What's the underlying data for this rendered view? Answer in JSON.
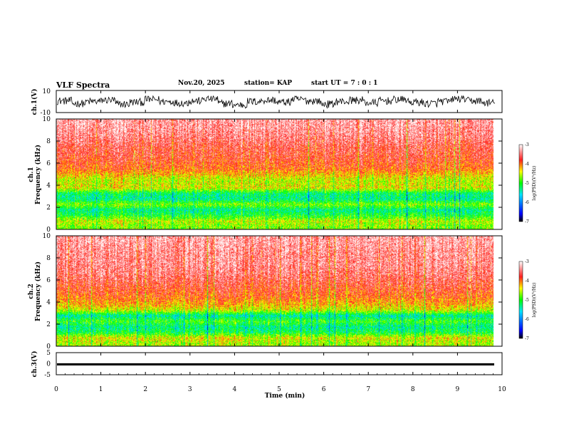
{
  "header": {
    "title": "VLF Spectra",
    "date": "Nov.20, 2025",
    "station": "station= KAP",
    "start": "start  UT  =   7 : 0  : 1"
  },
  "chart_data": [
    {
      "id": "ch1-waveform",
      "type": "line",
      "ylabel": "ch.1(V)",
      "ylim": [
        -10,
        10
      ],
      "yticks": [
        10,
        -10
      ],
      "xlim": [
        0,
        10
      ],
      "approx_range": [
        -6,
        5
      ],
      "samples": [
        1,
        -3,
        0,
        2,
        -4,
        -1,
        3,
        0,
        -2,
        1,
        4,
        -3,
        -5,
        0,
        2,
        -1,
        3,
        1,
        -4,
        0,
        2,
        -2,
        1,
        3,
        -1,
        -3,
        0,
        4,
        1,
        -2
      ]
    },
    {
      "id": "ch1-spectrogram",
      "type": "heatmap",
      "ylabel": "Frequency  (kHz)",
      "panel_label": "ch.1",
      "ylim": [
        0,
        10
      ],
      "yticks": [
        0,
        2,
        4,
        6,
        8,
        10
      ],
      "xlim": [
        0,
        10
      ],
      "colorbar": {
        "label": "log(PSD)(V²/Hz)",
        "ticks": [
          -3,
          -4,
          -5,
          -6,
          -7
        ],
        "range": [
          -7,
          -3
        ]
      },
      "frequency_profile_log_psd": [
        {
          "f": 0.25,
          "v": -4.7
        },
        {
          "f": 0.75,
          "v": -4.5
        },
        {
          "f": 1.25,
          "v": -5.0
        },
        {
          "f": 1.75,
          "v": -5.3
        },
        {
          "f": 2.25,
          "v": -4.7
        },
        {
          "f": 2.75,
          "v": -5.3
        },
        {
          "f": 3.25,
          "v": -5.2
        },
        {
          "f": 3.75,
          "v": -4.4
        },
        {
          "f": 4.5,
          "v": -4.5
        },
        {
          "f": 5.5,
          "v": -3.9
        },
        {
          "f": 6.5,
          "v": -3.7
        },
        {
          "f": 7.5,
          "v": -3.6
        },
        {
          "f": 8.5,
          "v": -3.4
        },
        {
          "f": 9.5,
          "v": -3.3
        }
      ]
    },
    {
      "id": "ch2-spectrogram",
      "type": "heatmap",
      "ylabel": "Frequency  (kHz)",
      "panel_label": "ch.2",
      "ylim": [
        0,
        10
      ],
      "yticks": [
        0,
        2,
        4,
        6,
        8,
        10
      ],
      "xlim": [
        0,
        10
      ],
      "colorbar": {
        "label": "log(PSD)(V²/Hz)",
        "ticks": [
          -3,
          -4,
          -5,
          -6,
          -7
        ],
        "range": [
          -7,
          -3
        ]
      },
      "frequency_profile_log_psd": [
        {
          "f": 0.25,
          "v": -4.6
        },
        {
          "f": 0.75,
          "v": -4.4
        },
        {
          "f": 1.25,
          "v": -5.1
        },
        {
          "f": 1.75,
          "v": -5.3
        },
        {
          "f": 2.25,
          "v": -4.9
        },
        {
          "f": 2.75,
          "v": -5.4
        },
        {
          "f": 3.25,
          "v": -4.5
        },
        {
          "f": 3.75,
          "v": -4.2
        },
        {
          "f": 4.5,
          "v": -3.9
        },
        {
          "f": 5.5,
          "v": -3.7
        },
        {
          "f": 6.5,
          "v": -3.5
        },
        {
          "f": 7.5,
          "v": -3.4
        },
        {
          "f": 8.5,
          "v": -3.4
        },
        {
          "f": 9.5,
          "v": -3.3
        }
      ]
    },
    {
      "id": "ch3-waveform",
      "type": "line",
      "ylabel": "ch.3(V)",
      "ylim": [
        -5,
        5
      ],
      "yticks": [
        5,
        0,
        -5
      ],
      "xlim": [
        0,
        10
      ],
      "value_band": [
        -0.8,
        0.2
      ]
    }
  ],
  "xaxis": {
    "label": "Time  (min)",
    "ticks": [
      "0",
      "1",
      "2",
      "3",
      "4",
      "5",
      "6",
      "7",
      "8",
      "9",
      "10"
    ]
  }
}
